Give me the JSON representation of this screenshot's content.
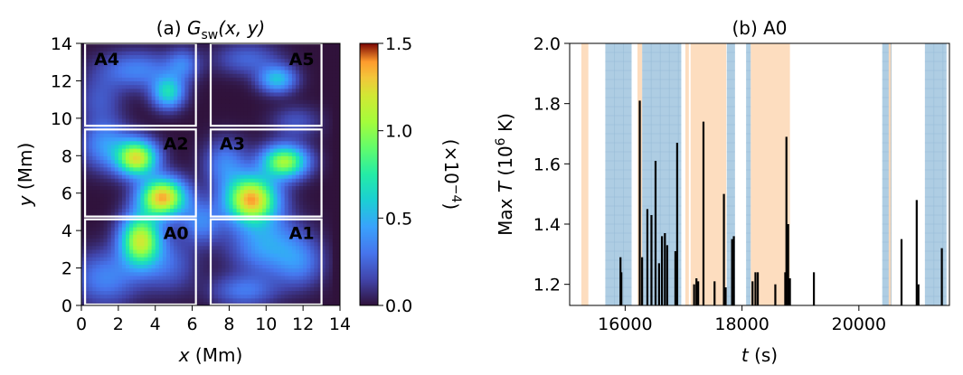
{
  "chart_data": [
    {
      "type": "heatmap",
      "panel_label": "(a)",
      "title_symbol": "G",
      "title_subscript": "sw",
      "title_args": "(x, y)",
      "xlabel_var": "x",
      "xlabel_unit": " (Mm)",
      "ylabel_var": "y",
      "ylabel_unit": " (Mm)",
      "xlim": [
        0,
        14
      ],
      "ylim": [
        0,
        14
      ],
      "xticks": [
        0,
        2,
        4,
        6,
        8,
        10,
        12,
        14
      ],
      "yticks": [
        0,
        2,
        4,
        6,
        8,
        10,
        12,
        14
      ],
      "colorbar": {
        "range": [
          0.0,
          1.5
        ],
        "ticks": [
          "0.0",
          "0.5",
          "1.0",
          "1.5"
        ],
        "tick_values": [
          0.0,
          0.5,
          1.0,
          1.5
        ],
        "label_prefix": "(×10",
        "label_exp": "−4",
        "label_suffix": ")",
        "colormap": "jet"
      },
      "blobs": [
        {
          "x": 3.2,
          "y": 3.5,
          "amp": 1.15,
          "sx": 0.75,
          "sy": 0.95
        },
        {
          "x": 3.0,
          "y": 7.9,
          "amp": 1.2,
          "sx": 0.75,
          "sy": 0.65
        },
        {
          "x": 4.4,
          "y": 5.8,
          "amp": 1.35,
          "sx": 0.85,
          "sy": 0.7
        },
        {
          "x": 9.2,
          "y": 5.7,
          "amp": 1.35,
          "sx": 0.95,
          "sy": 0.85
        },
        {
          "x": 11.0,
          "y": 7.7,
          "amp": 1.05,
          "sx": 0.85,
          "sy": 0.6
        },
        {
          "x": 10.0,
          "y": 3.3,
          "amp": 0.45,
          "sx": 1.3,
          "sy": 1.1
        },
        {
          "x": 11.8,
          "y": 2.3,
          "amp": 0.3,
          "sx": 0.9,
          "sy": 0.9
        },
        {
          "x": 8.8,
          "y": 0.8,
          "amp": 0.3,
          "sx": 1.2,
          "sy": 0.6
        },
        {
          "x": 1.3,
          "y": 1.5,
          "amp": 0.35,
          "sx": 1.2,
          "sy": 1.0
        },
        {
          "x": 4.7,
          "y": 2.2,
          "amp": 0.25,
          "sx": 1.0,
          "sy": 1.0
        },
        {
          "x": 4.7,
          "y": 11.4,
          "amp": 0.65,
          "sx": 0.6,
          "sy": 0.6
        },
        {
          "x": 3.0,
          "y": 12.6,
          "amp": 0.35,
          "sx": 1.4,
          "sy": 0.7
        },
        {
          "x": 1.0,
          "y": 11.0,
          "amp": 0.2,
          "sx": 0.8,
          "sy": 0.9
        },
        {
          "x": 5.5,
          "y": 12.9,
          "amp": 0.3,
          "sx": 0.6,
          "sy": 0.6
        },
        {
          "x": 10.6,
          "y": 12.1,
          "amp": 0.55,
          "sx": 0.7,
          "sy": 0.5
        },
        {
          "x": 9.0,
          "y": 13.2,
          "amp": 0.25,
          "sx": 1.2,
          "sy": 0.6
        },
        {
          "x": 11.6,
          "y": 9.8,
          "amp": 0.2,
          "sx": 0.9,
          "sy": 0.6
        },
        {
          "x": 1.3,
          "y": 8.6,
          "amp": 0.4,
          "sx": 0.9,
          "sy": 0.9
        },
        {
          "x": 7.8,
          "y": 7.6,
          "amp": 0.35,
          "sx": 0.8,
          "sy": 0.9
        },
        {
          "x": 6.5,
          "y": 4.5,
          "amp": 0.35,
          "sx": 0.8,
          "sy": 0.8
        }
      ],
      "regions": [
        {
          "name": "A0",
          "x0": 0.2,
          "x1": 6.2,
          "y0": 0.05,
          "y1": 4.6
        },
        {
          "name": "A1",
          "x0": 7.0,
          "x1": 13.0,
          "y0": 0.05,
          "y1": 4.6
        },
        {
          "name": "A2",
          "x0": 0.2,
          "x1": 6.2,
          "y0": 4.75,
          "y1": 9.4
        },
        {
          "name": "A3",
          "x0": 7.0,
          "x1": 13.0,
          "y0": 4.75,
          "y1": 9.4
        },
        {
          "name": "A4",
          "x0": 0.2,
          "x1": 6.2,
          "y0": 9.6,
          "y1": 14.0
        },
        {
          "name": "A5",
          "x0": 7.0,
          "x1": 13.0,
          "y0": 9.6,
          "y1": 14.0
        }
      ]
    },
    {
      "type": "bar",
      "panel_label": "(b)",
      "title": "A0",
      "xlabel_var": "t",
      "xlabel_unit": " (s)",
      "ylabel_prefix": "Max ",
      "ylabel_var": "T",
      "ylabel_unit_pre": " (10",
      "ylabel_exp": "6",
      "ylabel_unit_post": " K)",
      "xlim": [
        15050,
        21550
      ],
      "ylim": [
        1.13,
        2.0
      ],
      "xticks": [
        16000,
        18000,
        20000
      ],
      "xtick_labels": [
        "16000",
        "18000",
        "20000"
      ],
      "yticks": [
        1.2,
        1.4,
        1.6,
        1.8,
        2.0
      ],
      "ytick_labels": [
        "1.2",
        "1.4",
        "1.6",
        "1.8",
        "2.0"
      ],
      "blue_intervals": [
        [
          15660,
          16110
        ],
        [
          16290,
          16960
        ],
        [
          17740,
          17880
        ],
        [
          18070,
          18150
        ],
        [
          20400,
          20560
        ],
        [
          21130,
          21500
        ]
      ],
      "orange_intervals": [
        [
          15250,
          15370
        ],
        [
          16210,
          16290
        ],
        [
          17030,
          17090
        ],
        [
          17120,
          17730
        ],
        [
          18150,
          18820
        ],
        [
          20510,
          20550
        ]
      ],
      "spikes": [
        {
          "t": 15920,
          "v": 1.29
        },
        {
          "t": 15935,
          "v": 1.24
        },
        {
          "t": 16250,
          "v": 1.81
        },
        {
          "t": 16290,
          "v": 1.29
        },
        {
          "t": 16380,
          "v": 1.45
        },
        {
          "t": 16450,
          "v": 1.43
        },
        {
          "t": 16520,
          "v": 1.61
        },
        {
          "t": 16580,
          "v": 1.27
        },
        {
          "t": 16630,
          "v": 1.36
        },
        {
          "t": 16680,
          "v": 1.37
        },
        {
          "t": 16720,
          "v": 1.33
        },
        {
          "t": 16860,
          "v": 1.31
        },
        {
          "t": 16890,
          "v": 1.67
        },
        {
          "t": 17180,
          "v": 1.2
        },
        {
          "t": 17220,
          "v": 1.22
        },
        {
          "t": 17250,
          "v": 1.21
        },
        {
          "t": 17340,
          "v": 1.74
        },
        {
          "t": 17530,
          "v": 1.21
        },
        {
          "t": 17690,
          "v": 1.5
        },
        {
          "t": 17720,
          "v": 1.19
        },
        {
          "t": 17830,
          "v": 1.35
        },
        {
          "t": 17860,
          "v": 1.36
        },
        {
          "t": 18180,
          "v": 1.21
        },
        {
          "t": 18230,
          "v": 1.24
        },
        {
          "t": 18270,
          "v": 1.24
        },
        {
          "t": 18570,
          "v": 1.2
        },
        {
          "t": 18740,
          "v": 1.24
        },
        {
          "t": 18760,
          "v": 1.69
        },
        {
          "t": 18790,
          "v": 1.4
        },
        {
          "t": 18820,
          "v": 1.22
        },
        {
          "t": 19230,
          "v": 1.24
        },
        {
          "t": 20730,
          "v": 1.35
        },
        {
          "t": 20990,
          "v": 1.48
        },
        {
          "t": 21020,
          "v": 1.2
        },
        {
          "t": 21420,
          "v": 1.32
        }
      ]
    }
  ],
  "colors": {
    "band_blue": "#aecde3",
    "band_orange": "#fdd9b8",
    "grid_blue": "#8fb6d3",
    "spike": "#000000",
    "region_box": "#ffffff"
  }
}
